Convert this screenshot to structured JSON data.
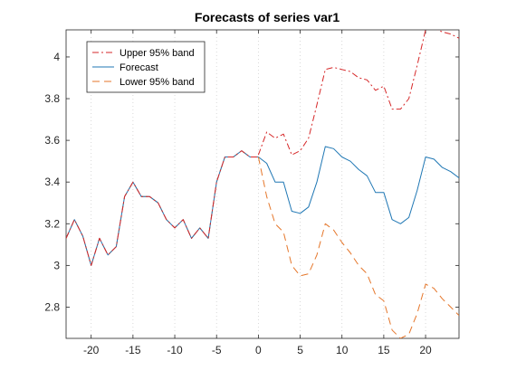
{
  "chart_data": {
    "type": "line",
    "title": "Forecasts of series  var1",
    "xlabel": "",
    "ylabel": "",
    "xlim": [
      -23,
      24
    ],
    "ylim": [
      2.65,
      4.13
    ],
    "xticks": [
      -20,
      -15,
      -10,
      -5,
      0,
      5,
      10,
      15,
      20
    ],
    "yticks": [
      2.8,
      3,
      3.2,
      3.4,
      3.6,
      3.8,
      4
    ],
    "grid": "dotted-vertical",
    "legend_position": "top-left",
    "history": {
      "x": [
        -23,
        -22,
        -21,
        -20,
        -19,
        -18,
        -17,
        -16,
        -15,
        -14,
        -13,
        -12,
        -11,
        -10,
        -9,
        -8,
        -7,
        -6,
        -5,
        -4,
        -3,
        -2,
        -1,
        0
      ],
      "y": [
        3.13,
        3.22,
        3.14,
        3.0,
        3.13,
        3.05,
        3.09,
        3.33,
        3.4,
        3.33,
        3.33,
        3.3,
        3.22,
        3.18,
        3.22,
        3.13,
        3.18,
        3.13,
        3.4,
        3.52,
        3.52,
        3.55,
        3.52,
        3.52
      ]
    },
    "series": [
      {
        "name": "Upper 95% band",
        "color": "#d62728",
        "style": "dash-dot",
        "x": [
          0,
          1,
          2,
          3,
          4,
          5,
          6,
          7,
          8,
          9,
          10,
          11,
          12,
          13,
          14,
          15,
          16,
          17,
          18,
          19,
          20,
          21,
          22,
          23,
          24
        ],
        "values": [
          3.53,
          3.64,
          3.61,
          3.63,
          3.53,
          3.55,
          3.61,
          3.77,
          3.94,
          3.95,
          3.94,
          3.93,
          3.9,
          3.89,
          3.84,
          3.86,
          3.75,
          3.75,
          3.8,
          3.96,
          4.13,
          4.14,
          4.12,
          4.11,
          4.09
        ]
      },
      {
        "name": "Forecast",
        "color": "#1f77b4",
        "style": "solid",
        "x": [
          0,
          1,
          2,
          3,
          4,
          5,
          6,
          7,
          8,
          9,
          10,
          11,
          12,
          13,
          14,
          15,
          16,
          17,
          18,
          19,
          20,
          21,
          22,
          23,
          24
        ],
        "values": [
          3.52,
          3.49,
          3.4,
          3.4,
          3.26,
          3.25,
          3.28,
          3.4,
          3.57,
          3.56,
          3.52,
          3.5,
          3.46,
          3.43,
          3.35,
          3.35,
          3.22,
          3.2,
          3.23,
          3.36,
          3.52,
          3.51,
          3.47,
          3.45,
          3.42
        ]
      },
      {
        "name": "Lower 95% band",
        "color": "#e5762a",
        "style": "dashed",
        "x": [
          0,
          1,
          2,
          3,
          4,
          5,
          6,
          7,
          8,
          9,
          10,
          11,
          12,
          13,
          14,
          15,
          16,
          17,
          18,
          19,
          20,
          21,
          22,
          23,
          24
        ],
        "values": [
          3.52,
          3.33,
          3.2,
          3.16,
          3.0,
          2.95,
          2.96,
          3.05,
          3.2,
          3.17,
          3.11,
          3.06,
          3.0,
          2.96,
          2.86,
          2.83,
          2.69,
          2.65,
          2.67,
          2.77,
          2.91,
          2.89,
          2.84,
          2.8,
          2.76
        ]
      }
    ]
  }
}
